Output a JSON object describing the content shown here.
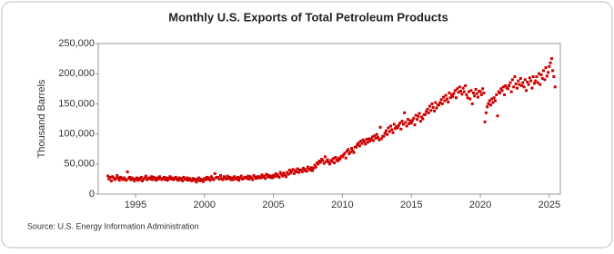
{
  "chart_data": {
    "type": "scatter",
    "title": "Monthly U.S. Exports of Total Petroleum Products",
    "y_label": "Thousand Barrels",
    "source": "Source: U.S. Energy Information Administration",
    "color": "#cc0000",
    "grid": false,
    "xlim": [
      1992.3,
      2025.8
    ],
    "xticks": [
      1995,
      2000,
      2005,
      2010,
      2015,
      2020,
      2025
    ],
    "ylim": [
      0,
      250000
    ],
    "yticks": [
      0,
      {
        "value": 50000,
        "label": "50,000"
      },
      {
        "value": 100000,
        "label": "100,000"
      },
      {
        "value": 150000,
        "label": "150,000"
      },
      {
        "value": 200000,
        "label": "200,000"
      },
      {
        "value": 250000,
        "label": "250,000"
      }
    ],
    "x": [
      1993,
      1993.08,
      1993.17,
      1993.25,
      1993.33,
      1993.42,
      1993.5,
      1993.58,
      1993.67,
      1993.75,
      1993.83,
      1993.92,
      1994,
      1994.08,
      1994.17,
      1994.25,
      1994.33,
      1994.42,
      1994.5,
      1994.58,
      1994.67,
      1994.75,
      1994.83,
      1994.92,
      1995,
      1995.08,
      1995.17,
      1995.25,
      1995.33,
      1995.42,
      1995.5,
      1995.58,
      1995.67,
      1995.75,
      1995.83,
      1995.92,
      1996,
      1996.08,
      1996.17,
      1996.25,
      1996.33,
      1996.42,
      1996.5,
      1996.58,
      1996.67,
      1996.75,
      1996.83,
      1996.92,
      1997,
      1997.08,
      1997.17,
      1997.25,
      1997.33,
      1997.42,
      1997.5,
      1997.58,
      1997.67,
      1997.75,
      1997.83,
      1997.92,
      1998,
      1998.08,
      1998.17,
      1998.25,
      1998.33,
      1998.42,
      1998.5,
      1998.58,
      1998.67,
      1998.75,
      1998.83,
      1998.92,
      1999,
      1999.08,
      1999.17,
      1999.25,
      1999.33,
      1999.42,
      1999.5,
      1999.58,
      1999.67,
      1999.75,
      1999.83,
      1999.92,
      2000,
      2000.08,
      2000.17,
      2000.25,
      2000.33,
      2000.42,
      2000.5,
      2000.58,
      2000.67,
      2000.75,
      2000.83,
      2000.92,
      2001,
      2001.08,
      2001.17,
      2001.25,
      2001.33,
      2001.42,
      2001.5,
      2001.58,
      2001.67,
      2001.75,
      2001.83,
      2001.92,
      2002,
      2002.08,
      2002.17,
      2002.25,
      2002.33,
      2002.42,
      2002.5,
      2002.58,
      2002.67,
      2002.75,
      2002.83,
      2002.92,
      2003,
      2003.08,
      2003.17,
      2003.25,
      2003.33,
      2003.42,
      2003.5,
      2003.58,
      2003.67,
      2003.75,
      2003.83,
      2003.92,
      2004,
      2004.08,
      2004.17,
      2004.25,
      2004.33,
      2004.42,
      2004.5,
      2004.58,
      2004.67,
      2004.75,
      2004.83,
      2004.92,
      2005,
      2005.08,
      2005.17,
      2005.25,
      2005.33,
      2005.42,
      2005.5,
      2005.58,
      2005.67,
      2005.75,
      2005.83,
      2005.92,
      2006,
      2006.08,
      2006.17,
      2006.25,
      2006.33,
      2006.42,
      2006.5,
      2006.58,
      2006.67,
      2006.75,
      2006.83,
      2006.92,
      2007,
      2007.08,
      2007.17,
      2007.25,
      2007.33,
      2007.42,
      2007.5,
      2007.58,
      2007.67,
      2007.75,
      2007.83,
      2007.92,
      2008,
      2008.08,
      2008.17,
      2008.25,
      2008.33,
      2008.42,
      2008.5,
      2008.58,
      2008.67,
      2008.75,
      2008.83,
      2008.92,
      2009,
      2009.08,
      2009.17,
      2009.25,
      2009.33,
      2009.42,
      2009.5,
      2009.58,
      2009.67,
      2009.75,
      2009.83,
      2009.92,
      2010,
      2010.08,
      2010.17,
      2010.25,
      2010.33,
      2010.42,
      2010.5,
      2010.58,
      2010.67,
      2010.75,
      2010.83,
      2010.92,
      2011,
      2011.08,
      2011.17,
      2011.25,
      2011.33,
      2011.42,
      2011.5,
      2011.58,
      2011.67,
      2011.75,
      2011.83,
      2011.92,
      2012,
      2012.08,
      2012.17,
      2012.25,
      2012.33,
      2012.42,
      2012.5,
      2012.58,
      2012.67,
      2012.75,
      2012.83,
      2012.92,
      2013,
      2013.08,
      2013.17,
      2013.25,
      2013.33,
      2013.42,
      2013.5,
      2013.58,
      2013.67,
      2013.75,
      2013.83,
      2013.92,
      2014,
      2014.08,
      2014.17,
      2014.25,
      2014.33,
      2014.42,
      2014.5,
      2014.58,
      2014.67,
      2014.75,
      2014.83,
      2014.92,
      2015,
      2015.08,
      2015.17,
      2015.25,
      2015.33,
      2015.42,
      2015.5,
      2015.58,
      2015.67,
      2015.75,
      2015.83,
      2015.92,
      2016,
      2016.08,
      2016.17,
      2016.25,
      2016.33,
      2016.42,
      2016.5,
      2016.58,
      2016.67,
      2016.75,
      2016.83,
      2016.92,
      2017,
      2017.08,
      2017.17,
      2017.25,
      2017.33,
      2017.42,
      2017.5,
      2017.58,
      2017.67,
      2017.75,
      2017.83,
      2017.92,
      2018,
      2018.08,
      2018.17,
      2018.25,
      2018.33,
      2018.42,
      2018.5,
      2018.58,
      2018.67,
      2018.75,
      2018.83,
      2018.92,
      2019,
      2019.08,
      2019.17,
      2019.25,
      2019.33,
      2019.42,
      2019.5,
      2019.58,
      2019.67,
      2019.75,
      2019.83,
      2019.92,
      2020,
      2020.08,
      2020.17,
      2020.25,
      2020.33,
      2020.42,
      2020.5,
      2020.58,
      2020.67,
      2020.75,
      2020.83,
      2020.92,
      2021,
      2021.08,
      2021.17,
      2021.25,
      2021.33,
      2021.42,
      2021.5,
      2021.58,
      2021.67,
      2021.75,
      2021.83,
      2021.92,
      2022,
      2022.08,
      2022.17,
      2022.25,
      2022.33,
      2022.42,
      2022.5,
      2022.58,
      2022.67,
      2022.75,
      2022.83,
      2022.92,
      2023,
      2023.08,
      2023.17,
      2023.25,
      2023.33,
      2023.42,
      2023.5,
      2023.58,
      2023.67,
      2023.75,
      2023.83,
      2023.92,
      2024,
      2024.08,
      2024.17,
      2024.25,
      2024.33,
      2024.42,
      2024.5,
      2024.58,
      2024.67,
      2024.75,
      2024.83,
      2024.92,
      2025,
      2025.08,
      2025.17,
      2025.25,
      2025.33,
      2025.42
    ],
    "values": [
      30000,
      25000,
      28000,
      22000,
      29000,
      27000,
      24000,
      26000,
      31000,
      27000,
      23000,
      28000,
      26000,
      24000,
      27000,
      25000,
      23000,
      37000,
      26000,
      28000,
      24000,
      27000,
      25000,
      22000,
      25000,
      27000,
      23000,
      26000,
      24000,
      28000,
      22000,
      25000,
      27000,
      30000,
      24000,
      26000,
      27000,
      25000,
      29000,
      24000,
      28000,
      26000,
      23000,
      27000,
      25000,
      29000,
      26000,
      24000,
      26000,
      28000,
      24000,
      27000,
      23000,
      26000,
      29000,
      25000,
      27000,
      24000,
      26000,
      28000,
      25000,
      23000,
      27000,
      24000,
      26000,
      22000,
      28000,
      25000,
      24000,
      27000,
      23000,
      26000,
      24000,
      22000,
      26000,
      23000,
      25000,
      20000,
      24000,
      27000,
      22000,
      25000,
      23000,
      21000,
      26000,
      24000,
      28000,
      25000,
      27000,
      23000,
      29000,
      26000,
      24000,
      34000,
      27000,
      28000,
      28000,
      25000,
      31000,
      26000,
      24000,
      29000,
      27000,
      25000,
      30000,
      26000,
      28000,
      24000,
      27000,
      24000,
      29000,
      26000,
      25000,
      28000,
      23000,
      27000,
      30000,
      25000,
      26000,
      28000,
      28000,
      26000,
      30000,
      25000,
      29000,
      27000,
      24000,
      31000,
      28000,
      26000,
      29000,
      27000,
      29000,
      27000,
      32000,
      28000,
      30000,
      26000,
      33000,
      29000,
      31000,
      28000,
      30000,
      27000,
      31000,
      29000,
      34000,
      30000,
      32000,
      28000,
      36000,
      33000,
      30000,
      35000,
      32000,
      29000,
      36000,
      33000,
      40000,
      35000,
      38000,
      41000,
      34000,
      39000,
      37000,
      42000,
      36000,
      40000,
      40000,
      37000,
      43000,
      39000,
      41000,
      38000,
      45000,
      42000,
      40000,
      44000,
      39000,
      43000,
      48000,
      45000,
      52000,
      50000,
      55000,
      53000,
      58000,
      56000,
      51000,
      62000,
      54000,
      57000,
      53000,
      50000,
      56000,
      54000,
      59000,
      52000,
      61000,
      57000,
      55000,
      60000,
      58000,
      63000,
      62000,
      65000,
      68000,
      60000,
      71000,
      74000,
      67000,
      70000,
      76000,
      72000,
      69000,
      78000,
      78000,
      82000,
      85000,
      80000,
      88000,
      84000,
      90000,
      87000,
      83000,
      91000,
      86000,
      92000,
      88000,
      91000,
      95000,
      89000,
      97000,
      93000,
      99000,
      94000,
      90000,
      111000,
      92000,
      96000,
      96000,
      101000,
      105000,
      99000,
      110000,
      104000,
      113000,
      107000,
      102000,
      116000,
      109000,
      112000,
      110000,
      114000,
      118000,
      108000,
      121000,
      116000,
      135000,
      119000,
      113000,
      124000,
      117000,
      122000,
      118000,
      122000,
      126000,
      115000,
      131000,
      124000,
      129000,
      134000,
      121000,
      128000,
      125000,
      132000,
      132000,
      137000,
      141000,
      135000,
      146000,
      139000,
      150000,
      144000,
      138000,
      152000,
      143000,
      148000,
      148000,
      152000,
      157000,
      150000,
      161000,
      155000,
      164000,
      158000,
      153000,
      168000,
      160000,
      165000,
      162000,
      167000,
      172000,
      160000,
      175000,
      169000,
      178000,
      171000,
      166000,
      176000,
      170000,
      180000,
      165000,
      160000,
      170000,
      158000,
      172000,
      150000,
      168000,
      163000,
      174000,
      167000,
      161000,
      171000,
      170000,
      165000,
      175000,
      168000,
      120000,
      135000,
      145000,
      150000,
      155000,
      148000,
      158000,
      152000,
      160000,
      155000,
      165000,
      130000,
      170000,
      168000,
      175000,
      172000,
      178000,
      165000,
      180000,
      176000,
      175000,
      180000,
      185000,
      170000,
      190000,
      178000,
      195000,
      183000,
      176000,
      188000,
      182000,
      192000,
      180000,
      185000,
      178000,
      190000,
      172000,
      186000,
      182000,
      193000,
      188000,
      176000,
      195000,
      184000,
      188000,
      195000,
      185000,
      200000,
      182000,
      198000,
      192000,
      205000,
      190000,
      210000,
      196000,
      202000,
      212000,
      218000,
      225000,
      205000,
      195000,
      178000
    ]
  }
}
